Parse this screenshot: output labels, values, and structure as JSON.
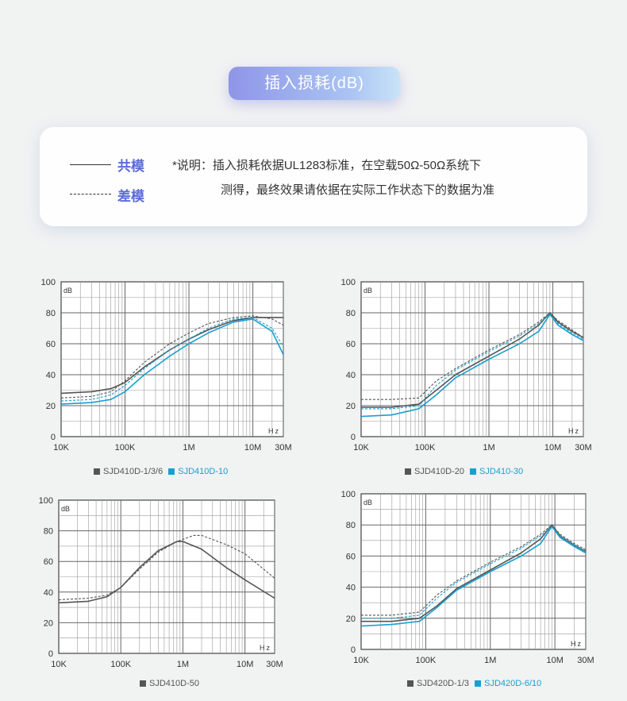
{
  "title": "插入损耗(dB)",
  "legend": {
    "common_label": "共模",
    "diff_label": "差模",
    "note_line1": "*说明：插入损耗依据UL1283标准，在空载50Ω-50Ω系统下",
    "note_line2": "测得，最终效果请依据在实际工作状态下的数据为准"
  },
  "colors": {
    "gray": "#555555",
    "blue": "#1a9fd0",
    "accent": "#5b6bd6"
  },
  "chart_data": [
    {
      "type": "line",
      "ylabel": "dB",
      "xunit": "Hz",
      "ylim": [
        0,
        100
      ],
      "xlim": [
        10000,
        30000000
      ],
      "xscale": "log",
      "yticks": [
        "0",
        "20",
        "40",
        "60",
        "80",
        "100"
      ],
      "xticks": [
        "10K",
        "100K",
        "1M",
        "10M",
        "30M"
      ],
      "legend_entries": [
        {
          "label": "SJD410D-1/3/6",
          "color": "#555555"
        },
        {
          "label": "SJD410D-10",
          "color": "#1a9fd0"
        }
      ],
      "series": [
        {
          "color": "#555555",
          "dash": false,
          "x": [
            10000,
            30000,
            60000,
            100000,
            200000,
            500000,
            1000000,
            2000000,
            5000000,
            10000000,
            20000000,
            30000000
          ],
          "y": [
            28,
            29,
            31,
            35,
            45,
            56,
            63,
            69,
            75,
            77,
            77,
            77
          ]
        },
        {
          "color": "#555555",
          "dash": true,
          "x": [
            10000,
            30000,
            60000,
            100000,
            200000,
            500000,
            1000000,
            2000000,
            5000000,
            10000000,
            20000000,
            30000000
          ],
          "y": [
            25,
            26,
            29,
            36,
            48,
            60,
            67,
            73,
            77,
            78,
            76,
            72
          ]
        },
        {
          "color": "#1a9fd0",
          "dash": false,
          "x": [
            10000,
            30000,
            60000,
            100000,
            200000,
            500000,
            1000000,
            2000000,
            5000000,
            10000000,
            20000000,
            30000000
          ],
          "y": [
            21,
            22,
            24,
            29,
            40,
            52,
            60,
            67,
            74,
            76,
            68,
            53
          ]
        },
        {
          "color": "#1a9fd0",
          "dash": true,
          "x": [
            10000,
            30000,
            60000,
            100000,
            200000,
            500000,
            1000000,
            2000000,
            5000000,
            10000000,
            20000000,
            30000000
          ],
          "y": [
            23,
            24,
            27,
            33,
            44,
            56,
            63,
            70,
            76,
            77,
            70,
            58
          ]
        }
      ]
    },
    {
      "type": "line",
      "ylabel": "dB",
      "xunit": "Hz",
      "ylim": [
        0,
        100
      ],
      "xlim": [
        10000,
        30000000
      ],
      "xscale": "log",
      "yticks": [
        "0",
        "20",
        "40",
        "60",
        "80",
        "100"
      ],
      "xticks": [
        "10K",
        "100K",
        "1M",
        "10M",
        "30M"
      ],
      "legend_entries": [
        {
          "label": "SJD410D-20",
          "color": "#555555"
        },
        {
          "label": "SJD410-30",
          "color": "#1a9fd0"
        }
      ],
      "series": [
        {
          "color": "#555555",
          "dash": false,
          "x": [
            10000,
            30000,
            80000,
            150000,
            300000,
            1000000,
            3000000,
            6000000,
            9000000,
            12000000,
            20000000,
            30000000
          ],
          "y": [
            19,
            19,
            21,
            30,
            40,
            52,
            63,
            72,
            80,
            74,
            68,
            64
          ]
        },
        {
          "color": "#555555",
          "dash": true,
          "x": [
            10000,
            30000,
            80000,
            150000,
            300000,
            1000000,
            3000000,
            6000000,
            9000000,
            12000000,
            20000000,
            30000000
          ],
          "y": [
            24,
            24,
            25,
            36,
            44,
            56,
            66,
            74,
            80,
            75,
            69,
            64
          ]
        },
        {
          "color": "#1a9fd0",
          "dash": false,
          "x": [
            10000,
            30000,
            80000,
            150000,
            300000,
            1000000,
            3000000,
            6000000,
            9000000,
            12000000,
            20000000,
            30000000
          ],
          "y": [
            13,
            14,
            18,
            27,
            38,
            50,
            60,
            68,
            79,
            72,
            66,
            62
          ]
        },
        {
          "color": "#1a9fd0",
          "dash": true,
          "x": [
            10000,
            30000,
            80000,
            150000,
            300000,
            1000000,
            3000000,
            6000000,
            9000000,
            12000000,
            20000000,
            30000000
          ],
          "y": [
            18,
            18,
            20,
            33,
            43,
            55,
            65,
            73,
            79,
            73,
            67,
            63
          ]
        }
      ]
    },
    {
      "type": "line",
      "ylabel": "dB",
      "xunit": "Hz",
      "ylim": [
        0,
        100
      ],
      "xlim": [
        10000,
        30000000
      ],
      "xscale": "log",
      "yticks": [
        "0",
        "20",
        "40",
        "60",
        "80",
        "100"
      ],
      "xticks": [
        "10K",
        "100K",
        "1M",
        "10M",
        "30M"
      ],
      "legend_entries": [
        {
          "label": "SJD410D-50",
          "color": "#555555"
        }
      ],
      "series": [
        {
          "color": "#555555",
          "dash": false,
          "x": [
            10000,
            30000,
            60000,
            100000,
            200000,
            400000,
            800000,
            1000000,
            2000000,
            5000000,
            10000000,
            30000000
          ],
          "y": [
            33,
            34,
            37,
            43,
            56,
            67,
            73,
            73,
            68,
            56,
            48,
            36
          ]
        },
        {
          "color": "#555555",
          "dash": true,
          "x": [
            10000,
            30000,
            60000,
            100000,
            200000,
            400000,
            800000,
            1500000,
            2000000,
            5000000,
            10000000,
            30000000
          ],
          "y": [
            35,
            36,
            38,
            43,
            55,
            66,
            73,
            77,
            77,
            71,
            65,
            49
          ]
        }
      ]
    },
    {
      "type": "line",
      "ylabel": "dB",
      "xunit": "Hz",
      "ylim": [
        0,
        100
      ],
      "xlim": [
        10000,
        30000000
      ],
      "xscale": "log",
      "yticks": [
        "0",
        "20",
        "40",
        "60",
        "80",
        "100"
      ],
      "xticks": [
        "10K",
        "100K",
        "1M",
        "10M",
        "30M"
      ],
      "legend_entries": [
        {
          "label": "SJD420D-1/3",
          "color": "#555555"
        },
        {
          "label": "SJD420D-6/10",
          "color": "#1a9fd0"
        }
      ],
      "series": [
        {
          "color": "#555555",
          "dash": false,
          "x": [
            10000,
            30000,
            80000,
            150000,
            300000,
            1000000,
            3000000,
            6000000,
            9000000,
            12000000,
            20000000,
            30000000
          ],
          "y": [
            18,
            18,
            20,
            28,
            39,
            51,
            62,
            71,
            80,
            73,
            67,
            63
          ]
        },
        {
          "color": "#555555",
          "dash": true,
          "x": [
            10000,
            30000,
            80000,
            150000,
            300000,
            1000000,
            3000000,
            6000000,
            9000000,
            12000000,
            20000000,
            30000000
          ],
          "y": [
            22,
            22,
            24,
            35,
            44,
            56,
            66,
            74,
            80,
            74,
            68,
            64
          ]
        },
        {
          "color": "#1a9fd0",
          "dash": false,
          "x": [
            10000,
            30000,
            80000,
            150000,
            300000,
            1000000,
            3000000,
            6000000,
            9000000,
            12000000,
            20000000,
            30000000
          ],
          "y": [
            15,
            16,
            18,
            27,
            38,
            50,
            60,
            68,
            79,
            72,
            66,
            62
          ]
        },
        {
          "color": "#1a9fd0",
          "dash": true,
          "x": [
            10000,
            30000,
            80000,
            150000,
            300000,
            1000000,
            3000000,
            6000000,
            9000000,
            12000000,
            20000000,
            30000000
          ],
          "y": [
            20,
            20,
            22,
            33,
            43,
            55,
            65,
            73,
            79,
            73,
            67,
            63
          ]
        }
      ]
    }
  ]
}
